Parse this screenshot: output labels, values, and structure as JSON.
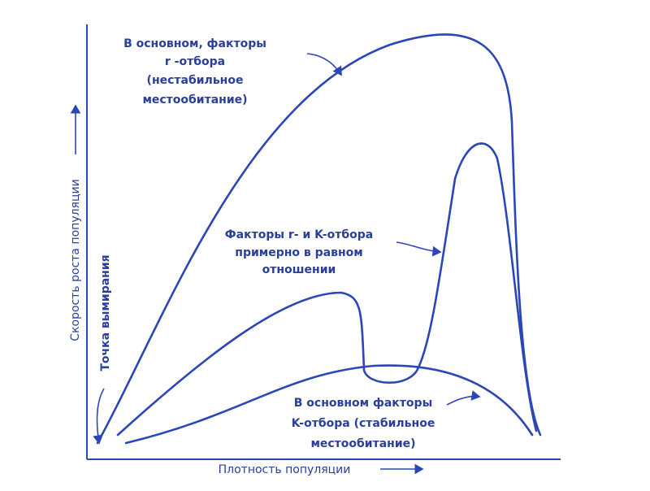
{
  "annotations": [
    {
      "lines": [
        "В основном, факторы",
        "r -отбора",
        "(нестабильное",
        "местообитание)"
      ]
    },
    {
      "lines": [
        "Факторы r- и K-отбора",
        "примерно в равном",
        "отношении"
      ]
    },
    {
      "lines": [
        "В основном факторы",
        "K-отбора (стабильное",
        "местообитание)"
      ]
    }
  ],
  "axes": {
    "y_label": "Скорость роста популяции",
    "x_label": "Плотность популяции",
    "extinction_label": "Точка вымирания"
  }
}
